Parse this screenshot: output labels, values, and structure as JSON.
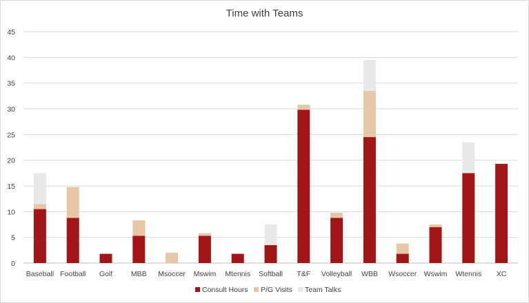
{
  "chart_data": {
    "type": "bar",
    "stacked": true,
    "title": "Time with Teams",
    "xlabel": "",
    "ylabel": "",
    "ylim": [
      0,
      45
    ],
    "yticks": [
      0,
      5,
      10,
      15,
      20,
      25,
      30,
      35,
      40,
      45
    ],
    "grid": true,
    "legend_position": "bottom",
    "categories": [
      "Baseball",
      "Football",
      "Golf",
      "MBB",
      "Msoccer",
      "Mswim",
      "Mtennis",
      "Softball",
      "T&F",
      "Volleyball",
      "WBB",
      "Wsoccer",
      "Wswim",
      "Wtennis",
      "XC"
    ],
    "series": [
      {
        "name": "Consult Hours",
        "color": "#a31618",
        "values": [
          10.5,
          8.8,
          1.8,
          5.3,
          0,
          5.3,
          1.8,
          3.5,
          29.8,
          8.8,
          24.5,
          1.8,
          7.0,
          17.5,
          19.3
        ]
      },
      {
        "name": "P/G Visits",
        "color": "#e6c7a8",
        "values": [
          1.0,
          6.0,
          0,
          3.0,
          2.0,
          0.5,
          0,
          0,
          1.0,
          1.0,
          9.0,
          2.0,
          0.5,
          0,
          0
        ]
      },
      {
        "name": "Team Talks",
        "color": "#e8e8e8",
        "values": [
          6.0,
          0,
          0,
          0,
          0,
          0,
          0,
          4.0,
          0,
          0,
          6.0,
          0,
          0,
          6.0,
          0
        ]
      }
    ]
  }
}
